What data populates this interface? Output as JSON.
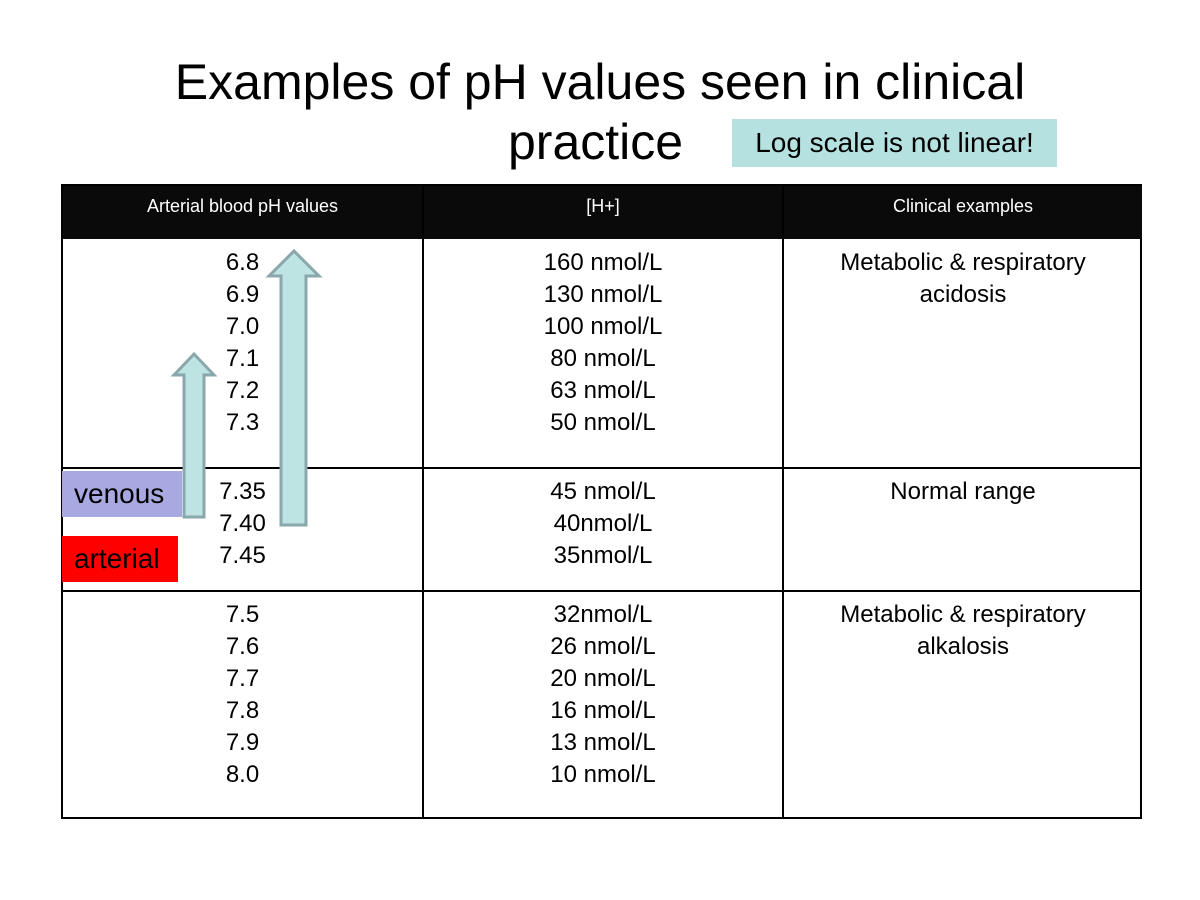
{
  "title": {
    "line1": "Examples of pH values seen in clinical",
    "line2": "practice"
  },
  "callout": "Log scale is not linear!",
  "table": {
    "headers": [
      "Arterial blood pH values",
      "[H+]",
      "Clinical examples"
    ],
    "rows": [
      {
        "ph": [
          "6.8",
          "6.9",
          "7.0",
          "7.1",
          "7.2",
          "7.3"
        ],
        "h": [
          "160 nmol/L",
          "130 nmol/L",
          "100 nmol/L",
          "80 nmol/L",
          "63 nmol/L",
          "50 nmol/L"
        ],
        "clinical": [
          "Metabolic & respiratory",
          "acidosis"
        ]
      },
      {
        "ph": [
          "7.35",
          "7.40",
          "7.45"
        ],
        "h": [
          "45 nmol/L",
          "40nmol/L",
          "35nmol/L"
        ],
        "clinical": [
          "Normal range"
        ]
      },
      {
        "ph": [
          "7.5",
          "7.6",
          "7.7",
          "7.8",
          "7.9",
          "8.0"
        ],
        "h": [
          "32nmol/L",
          "26 nmol/L",
          "20 nmol/L",
          "16 nmol/L",
          "13 nmol/L",
          "10 nmol/L"
        ],
        "clinical": [
          "Metabolic & respiratory",
          "alkalosis"
        ]
      }
    ]
  },
  "labels": {
    "venous": "venous",
    "arterial": "arterial"
  },
  "colors": {
    "callout_bg": "#b6e1e1",
    "header_bg": "#0a0a0a",
    "venous_bg": "#a9a9e2",
    "arterial_bg": "#ff0000",
    "arrow_fill": "#bde3e3",
    "arrow_stroke": "#8aa7ac"
  },
  "icons": [
    "arrow-up-icon"
  ]
}
